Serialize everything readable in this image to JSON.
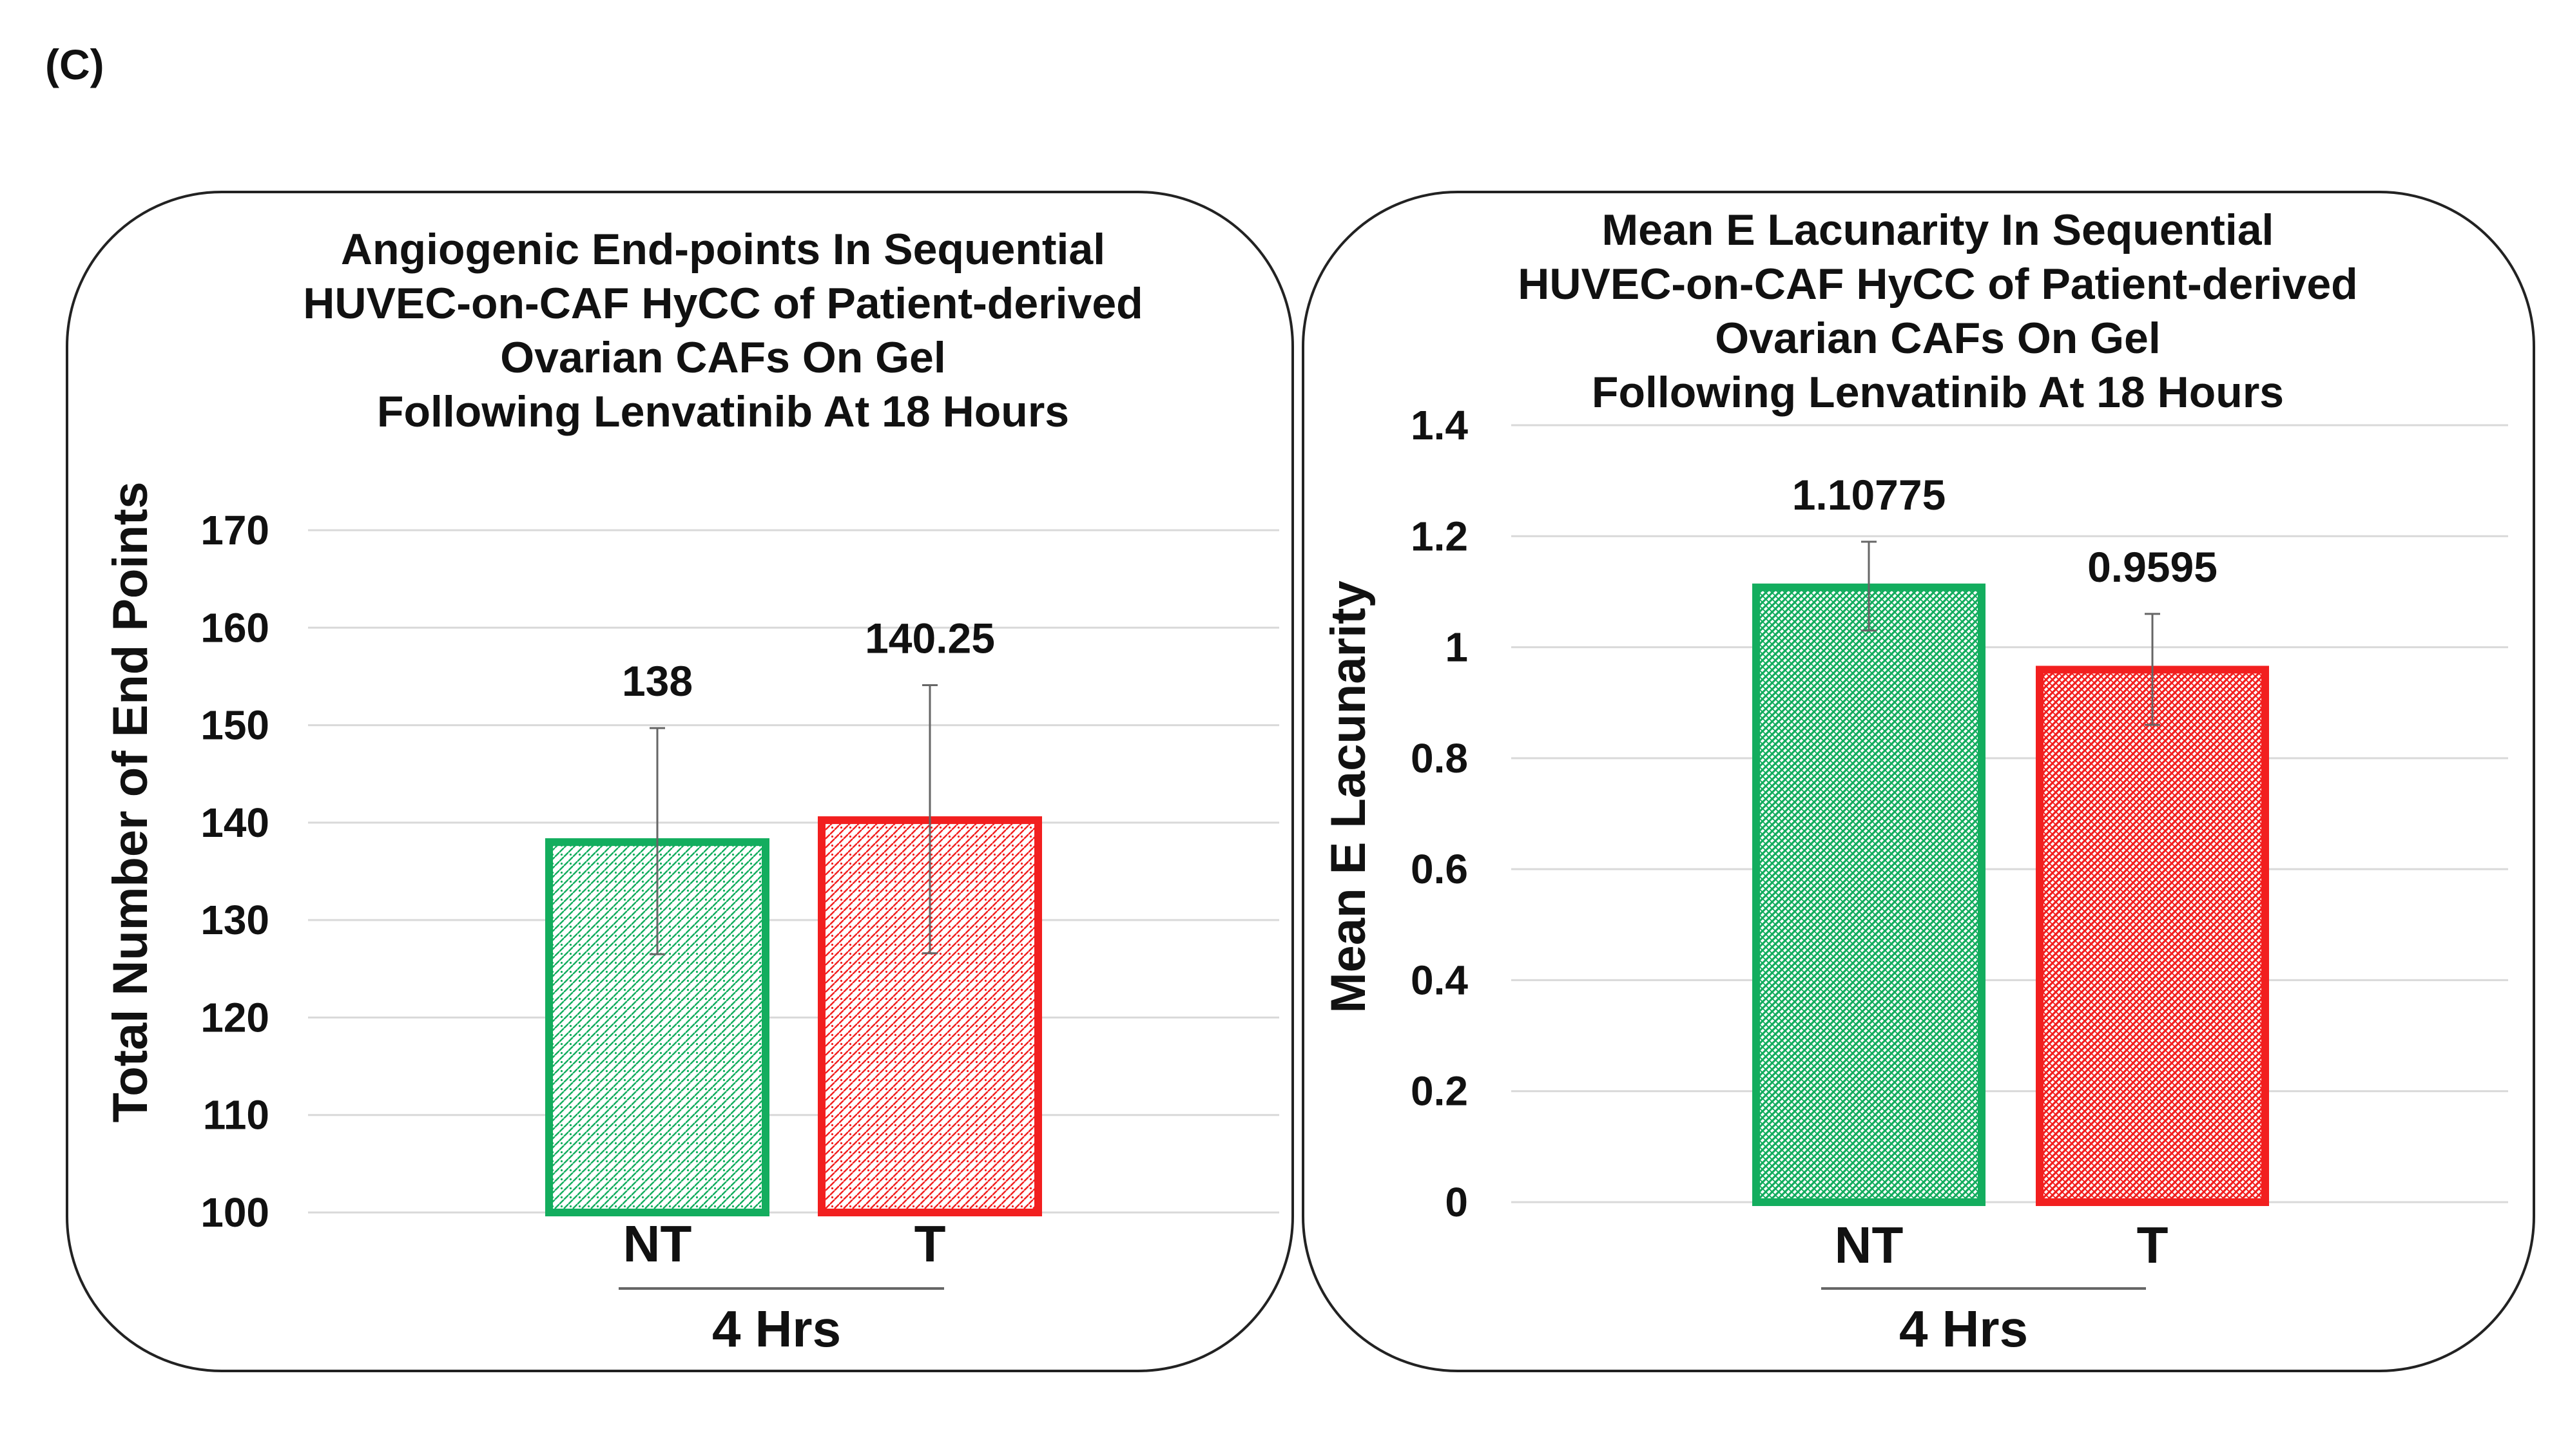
{
  "panel_label": "(C)",
  "colors": {
    "green": "#13AD5E",
    "red": "#F21F1F",
    "frame": "#222222",
    "grid": "#D9D9D9"
  },
  "chart_data": [
    {
      "type": "bar",
      "title": [
        "Angiogenic End-points In Sequential",
        "HUVEC-on-CAF HyCC of Patient-derived",
        "Ovarian CAFs On Gel",
        "Following Lenvatinib At 18 Hours"
      ],
      "ylabel": "Total Number of End Points",
      "ylim": [
        100,
        170
      ],
      "yticks": [
        "100",
        "110",
        "120",
        "130",
        "140",
        "150",
        "160",
        "170"
      ],
      "group_label": "4 Hrs",
      "categories": [
        "NT",
        "T"
      ],
      "values": [
        138,
        140.25
      ],
      "data_labels": [
        "138",
        "140.25"
      ],
      "error_bars": [
        [
          126.5,
          149.7
        ],
        [
          126.6,
          154.1
        ]
      ],
      "bar_colors": [
        "#13AD5E",
        "#F21F1F"
      ],
      "grid": true
    },
    {
      "type": "bar",
      "title": [
        "Mean E Lacunarity In Sequential",
        "HUVEC-on-CAF HyCC of Patient-derived",
        "Ovarian CAFs On Gel",
        "Following Lenvatinib At 18 Hours"
      ],
      "ylabel": "Mean E Lacunarity",
      "ylim": [
        0,
        1.4
      ],
      "yticks": [
        "0",
        "0.2",
        "0.4",
        "0.6",
        "0.8",
        "1",
        "1.2",
        "1.4"
      ],
      "group_label": "4 Hrs",
      "categories": [
        "NT",
        "T"
      ],
      "values": [
        1.10775,
        0.9595
      ],
      "data_labels": [
        "1.10775",
        "0.9595"
      ],
      "error_bars": [
        [
          1.03,
          1.19
        ],
        [
          0.86,
          1.06
        ]
      ],
      "bar_colors": [
        "#13AD5E",
        "#F21F1F"
      ],
      "grid": true
    }
  ]
}
